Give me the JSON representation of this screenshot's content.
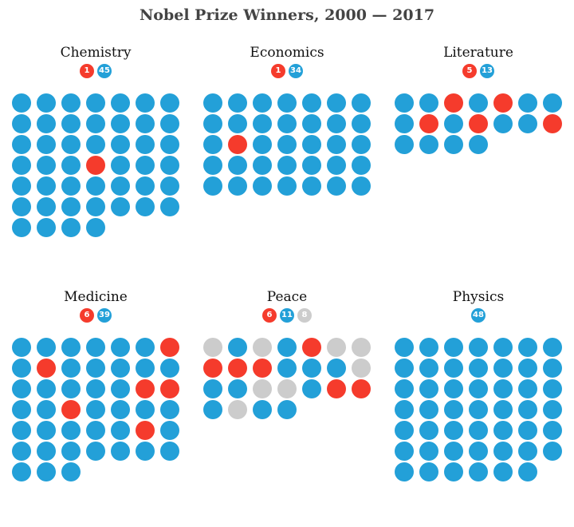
{
  "title": "Nobel Prize Winners, 2000 — 2017",
  "colors": {
    "red": "#f53b2c",
    "blue": "#23a0d8",
    "gray": "#cccccc"
  },
  "chart_data": {
    "type": "waffle",
    "columns_per_row": 7,
    "categories": [
      {
        "name": "Chemistry",
        "counts": [
          {
            "color": "red",
            "value": 1
          },
          {
            "color": "blue",
            "value": 45
          }
        ],
        "cells": "bbbbbbbbbbbbbbbbbbbbbbbbrbbbbbbbbbbbbbbbbbbbbb"
      },
      {
        "name": "Economics",
        "counts": [
          {
            "color": "red",
            "value": 1
          },
          {
            "color": "blue",
            "value": 34
          }
        ],
        "cells": "bbbbbbbbbbbbbbbrbbbbbbbbbbbbbbbbbbb"
      },
      {
        "name": "Literature",
        "counts": [
          {
            "color": "red",
            "value": 5
          },
          {
            "color": "blue",
            "value": 13
          }
        ],
        "cells": "bbrbrbbbrbrbbrbbbb"
      },
      {
        "name": "Medicine",
        "counts": [
          {
            "color": "red",
            "value": 6
          },
          {
            "color": "blue",
            "value": 39
          }
        ],
        "cells": "bbbbbbrbrbbbbbbbbbbrrbbrbbbbbbbbbrbbbbbbbbbbb"
      },
      {
        "name": "Peace",
        "counts": [
          {
            "color": "red",
            "value": 6
          },
          {
            "color": "blue",
            "value": 11
          },
          {
            "color": "gray",
            "value": 8
          }
        ],
        "cells": "gbgbrggrrrbbbgbbggbrrbgbb"
      },
      {
        "name": "Physics",
        "counts": [
          {
            "color": "blue",
            "value": 48
          }
        ],
        "cells": "bbbbbbbbbbbbbbbbbbbbbbbbbbbbbbbbbbbbbbbbbbbbbbbb"
      }
    ]
  }
}
